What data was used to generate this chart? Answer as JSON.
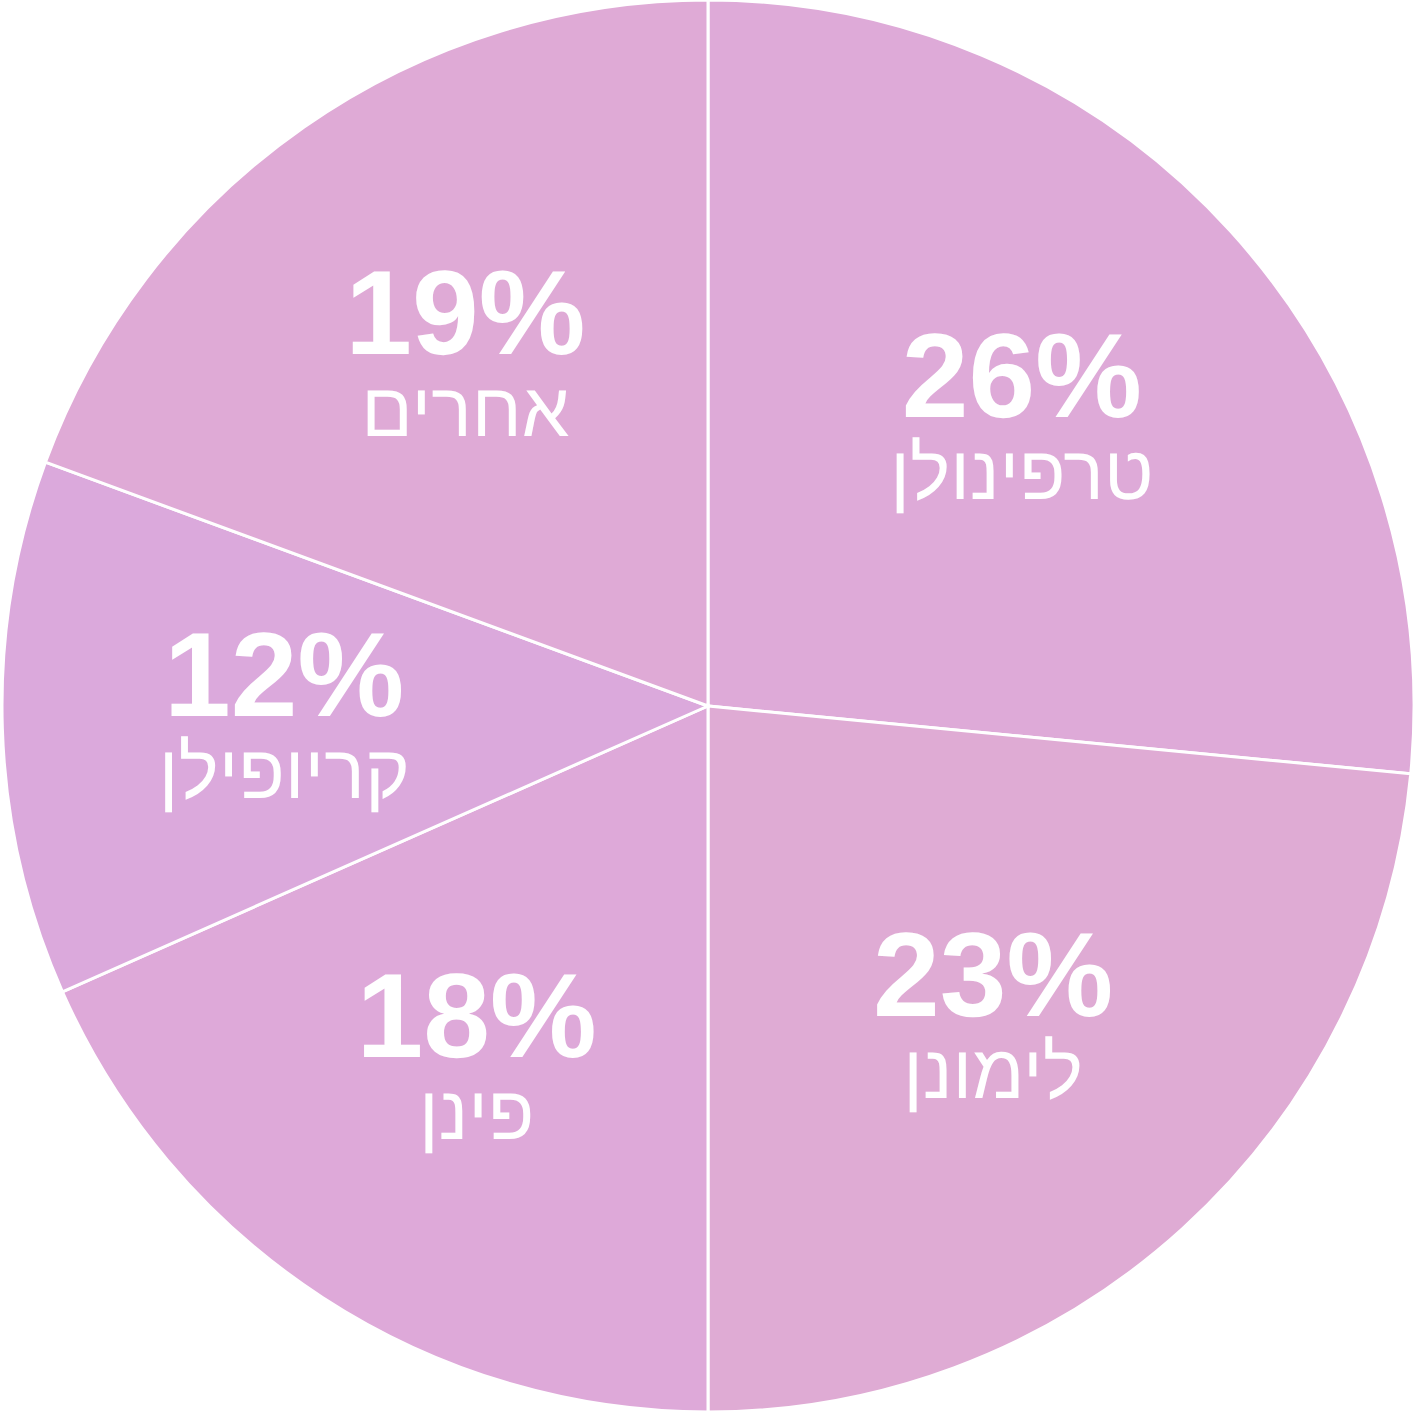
{
  "chart_data": {
    "type": "pie",
    "categories": [
      "טרפינולן",
      "לימונן",
      "פינן",
      "קריופילן",
      "אחרים"
    ],
    "values": [
      26,
      23,
      18,
      12,
      19
    ],
    "value_labels": [
      "26%",
      "23%",
      "18%",
      "12%",
      "19%"
    ],
    "colors": [
      "#deaad8",
      "#dfabd4",
      "#dea9d9",
      "#dba9dc",
      "#dfaad6"
    ]
  }
}
